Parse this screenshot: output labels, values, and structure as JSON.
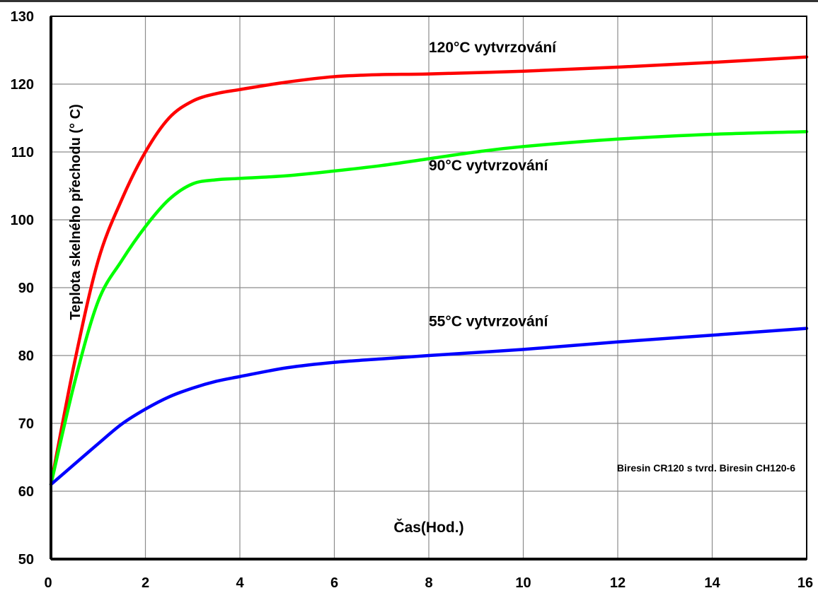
{
  "chart_data": {
    "type": "line",
    "title": "",
    "xlabel": "Čas(Hod.)",
    "ylabel": "Teplota skelného přechodu (° C)",
    "xlim": [
      0,
      16
    ],
    "ylim": [
      50,
      130
    ],
    "x_ticks": [
      0,
      2,
      4,
      6,
      8,
      10,
      12,
      14,
      16
    ],
    "y_ticks": [
      50,
      60,
      70,
      80,
      90,
      100,
      110,
      120,
      130
    ],
    "grid": true,
    "note": "Biresin CR120 s tvrd. Biresin CH120-6",
    "series": [
      {
        "name": "120°C vytvrzování",
        "color": "#ff0000",
        "x": [
          0,
          0.5,
          1,
          1.5,
          2,
          2.5,
          3,
          3.5,
          4,
          5,
          6,
          7,
          8,
          10,
          12,
          14,
          16
        ],
        "y": [
          61,
          79,
          94,
          103,
          110,
          115,
          117.5,
          118.6,
          119.2,
          120.3,
          121.1,
          121.4,
          121.5,
          121.9,
          122.5,
          123.2,
          124
        ]
      },
      {
        "name": "90°C vytvrzování",
        "color": "#00ff00",
        "x": [
          0,
          0.5,
          1,
          1.5,
          2,
          2.5,
          3,
          3.5,
          4,
          5,
          6,
          7,
          8,
          9,
          10,
          12,
          14,
          16
        ],
        "y": [
          61,
          76,
          88,
          94,
          99,
          103,
          105.3,
          105.9,
          106.1,
          106.5,
          107.2,
          108,
          109,
          110,
          110.8,
          111.9,
          112.6,
          113
        ]
      },
      {
        "name": "55°C vytvrzování",
        "color": "#0000ff",
        "x": [
          0,
          0.5,
          1,
          1.5,
          2,
          2.5,
          3,
          3.5,
          4,
          5,
          6,
          7,
          8,
          10,
          12,
          14,
          16
        ],
        "y": [
          61,
          64,
          67,
          69.9,
          72.1,
          73.9,
          75.2,
          76.2,
          76.9,
          78.2,
          79.0,
          79.5,
          80.0,
          80.9,
          82.0,
          83.0,
          84.0
        ]
      }
    ],
    "annotations": [
      {
        "text": "120°C vytvrzování",
        "x": 8.0,
        "y": 124.7
      },
      {
        "text": "90°C vytvrzování",
        "x": 8.0,
        "y": 107.3
      },
      {
        "text": "55°C vytvrzování",
        "x": 8.0,
        "y": 84.3
      }
    ]
  }
}
